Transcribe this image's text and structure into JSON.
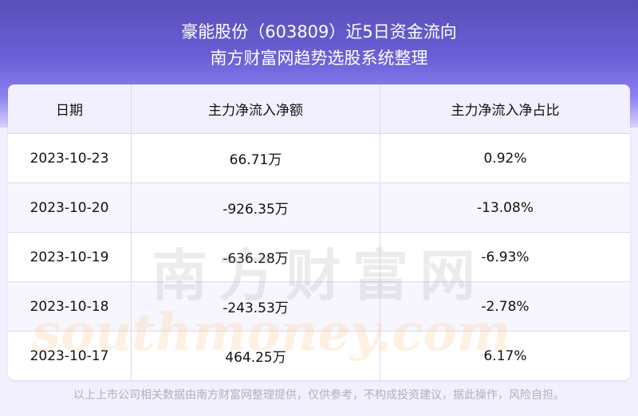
{
  "header": {
    "title": "豪能股份（603809）近5日资金流向",
    "subtitle": "南方财富网趋势选股系统整理"
  },
  "table": {
    "columns": [
      "日期",
      "主力净流入净额",
      "主力净流入净占比"
    ],
    "rows": [
      [
        "2023-10-23",
        "66.71万",
        "0.92%"
      ],
      [
        "2023-10-20",
        "-926.35万",
        "-13.08%"
      ],
      [
        "2023-10-19",
        "-636.28万",
        "-6.93%"
      ],
      [
        "2023-10-18",
        "-243.53万",
        "-2.78%"
      ],
      [
        "2023-10-17",
        "464.25万",
        "6.17%"
      ]
    ]
  },
  "watermark": {
    "cn": "南方财富网",
    "en": "southmoney.com"
  },
  "footer": "以上上市公司相关数据由南方财富网整理提供，仅供参考，不构成投资建议，据此操作，风险自担。"
}
